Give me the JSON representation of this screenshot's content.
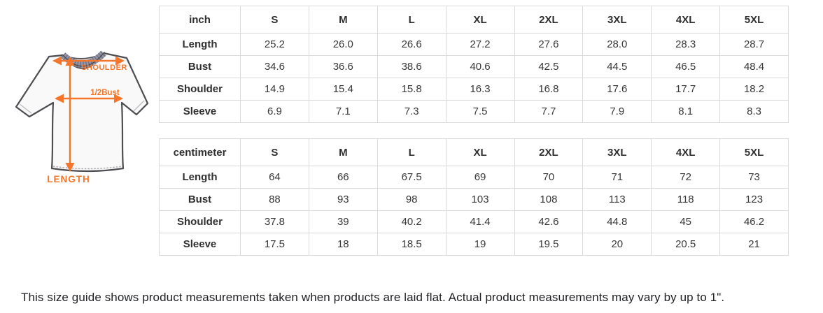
{
  "diagram": {
    "shoulder_label": "SHOULDER",
    "bust_label": "1/2Bust",
    "length_label": "LENGTH"
  },
  "tables": [
    {
      "unit": "inch",
      "columns": [
        "S",
        "M",
        "L",
        "XL",
        "2XL",
        "3XL",
        "4XL",
        "5XL"
      ],
      "rows": [
        {
          "label": "Length",
          "values": [
            "25.2",
            "26.0",
            "26.6",
            "27.2",
            "27.6",
            "28.0",
            "28.3",
            "28.7"
          ]
        },
        {
          "label": "Bust",
          "values": [
            "34.6",
            "36.6",
            "38.6",
            "40.6",
            "42.5",
            "44.5",
            "46.5",
            "48.4"
          ]
        },
        {
          "label": "Shoulder",
          "values": [
            "14.9",
            "15.4",
            "15.8",
            "16.3",
            "16.8",
            "17.6",
            "17.7",
            "18.2"
          ]
        },
        {
          "label": "Sleeve",
          "values": [
            "6.9",
            "7.1",
            "7.3",
            "7.5",
            "7.7",
            "7.9",
            "8.1",
            "8.3"
          ]
        }
      ]
    },
    {
      "unit": "centimeter",
      "columns": [
        "S",
        "M",
        "L",
        "XL",
        "2XL",
        "3XL",
        "4XL",
        "5XL"
      ],
      "rows": [
        {
          "label": "Length",
          "values": [
            "64",
            "66",
            "67.5",
            "69",
            "70",
            "71",
            "72",
            "73"
          ]
        },
        {
          "label": "Bust",
          "values": [
            "88",
            "93",
            "98",
            "103",
            "108",
            "113",
            "118",
            "123"
          ]
        },
        {
          "label": "Shoulder",
          "values": [
            "37.8",
            "39",
            "40.2",
            "41.4",
            "42.6",
            "44.8",
            "45",
            "46.2"
          ]
        },
        {
          "label": "Sleeve",
          "values": [
            "17.5",
            "18",
            "18.5",
            "19",
            "19.5",
            "20",
            "20.5",
            "21"
          ]
        }
      ]
    }
  ],
  "note": "This size guide shows product measurements taken when products are laid flat. Actual product measurements may vary by up to 1\".",
  "colors": {
    "accent_orange": "#f5762b",
    "outline_gray": "#4d4d52",
    "collar_gray": "#9597a8",
    "table_border": "#dadada",
    "text": "#383838"
  }
}
